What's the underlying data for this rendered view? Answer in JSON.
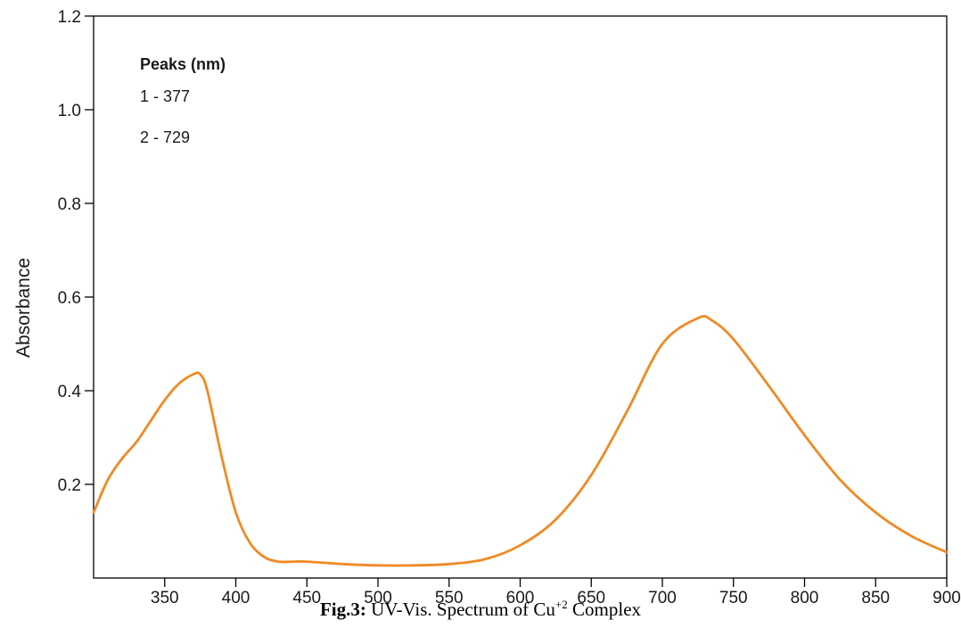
{
  "chart_data": {
    "type": "line",
    "title": "",
    "xlabel": "",
    "ylabel": "Absorbance",
    "xlim": [
      300,
      900
    ],
    "ylim": [
      0,
      1.2
    ],
    "x_ticks": [
      350,
      400,
      450,
      500,
      550,
      600,
      650,
      700,
      750,
      800,
      850,
      "900"
    ],
    "x_tick_labels": [
      "350",
      "400",
      "450",
      "500",
      "550",
      "600",
      "650",
      "700",
      "750",
      "800",
      "850",
      "900"
    ],
    "y_ticks": [
      0.2,
      0.4,
      0.6,
      0.8,
      1.0,
      1.2
    ],
    "y_tick_labels": [
      "0.2",
      "0.4",
      "0.6",
      "0.8",
      "1.0",
      "1.2"
    ],
    "grid": false,
    "line_color": "#f08a24",
    "series": [
      {
        "x": [
          300,
          310,
          320,
          330,
          340,
          350,
          360,
          370,
          375,
          380,
          390,
          400,
          410,
          420,
          430,
          440,
          450,
          475,
          500,
          525,
          550,
          575,
          600,
          625,
          650,
          675,
          700,
          725,
          735,
          750,
          775,
          800,
          825,
          850,
          875,
          900
        ],
        "y": [
          0.14,
          0.21,
          0.255,
          0.29,
          0.335,
          0.38,
          0.415,
          0.435,
          0.435,
          0.4,
          0.26,
          0.14,
          0.075,
          0.045,
          0.035,
          0.035,
          0.035,
          0.03,
          0.027,
          0.027,
          0.03,
          0.04,
          0.07,
          0.125,
          0.22,
          0.355,
          0.5,
          0.555,
          0.55,
          0.51,
          0.41,
          0.305,
          0.21,
          0.14,
          0.09,
          0.055
        ]
      }
    ],
    "annotations": {
      "peaks_title": "Peaks (nm)",
      "peaks": [
        "1 - 377",
        "2 - 729"
      ]
    }
  },
  "caption": {
    "label": "Fig.3:",
    "text": " UV-Vis. Spectrum of Cu",
    "superscript": "+2",
    "suffix": " Complex"
  }
}
